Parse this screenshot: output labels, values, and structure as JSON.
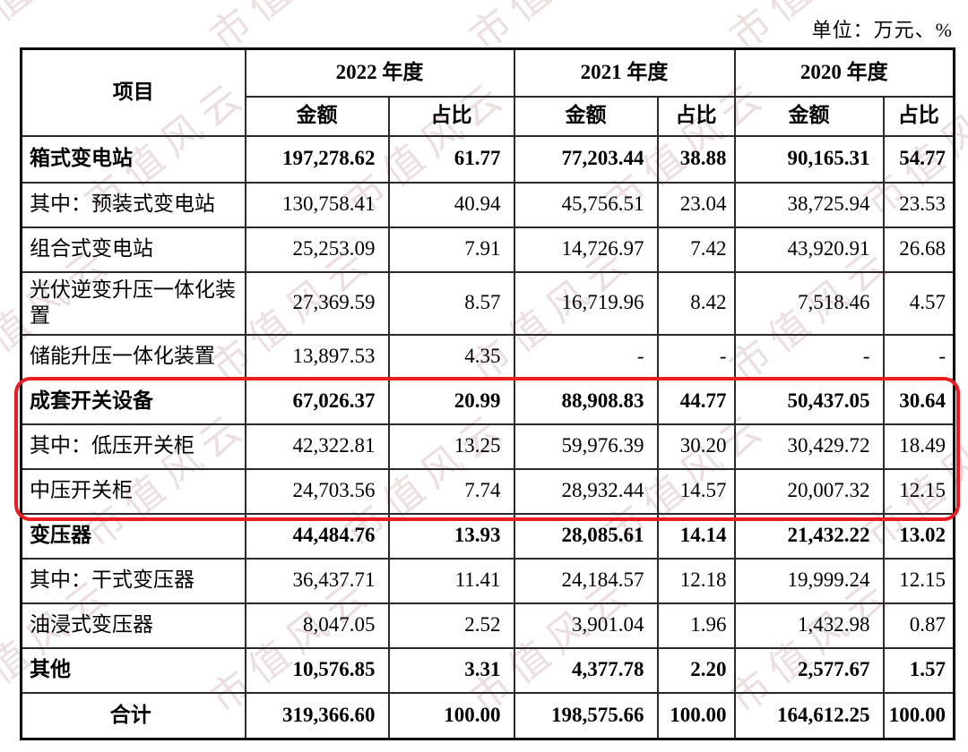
{
  "unit_label": "单位：万元、%",
  "watermark": {
    "text": "市值风云",
    "color": "#ddc6c6"
  },
  "colors": {
    "highlight_border": "#ea1c22",
    "table_border": "#000000"
  },
  "table": {
    "item_header": "项目",
    "year_groups": [
      {
        "label": "2022 年度",
        "amount_label": "金额",
        "ratio_label": "占比"
      },
      {
        "label": "2021 年度",
        "amount_label": "金额",
        "ratio_label": "占比"
      },
      {
        "label": "2020 年度",
        "amount_label": "金额",
        "ratio_label": "占比"
      }
    ],
    "rows": [
      {
        "label": "箱式变电站",
        "bold": true,
        "center": false,
        "values": [
          "197,278.62",
          "61.77",
          "77,203.44",
          "38.88",
          "90,165.31",
          "54.77"
        ]
      },
      {
        "label": "其中：预装式变电站",
        "bold": false,
        "center": false,
        "values": [
          "130,758.41",
          "40.94",
          "45,756.51",
          "23.04",
          "38,725.94",
          "23.53"
        ]
      },
      {
        "label": "组合式变电站",
        "bold": false,
        "center": false,
        "values": [
          "25,253.09",
          "7.91",
          "14,726.97",
          "7.42",
          "43,920.91",
          "26.68"
        ]
      },
      {
        "label": "光伏逆变升压一体化装置",
        "bold": false,
        "center": false,
        "values": [
          "27,369.59",
          "8.57",
          "16,719.96",
          "8.42",
          "7,518.46",
          "4.57"
        ]
      },
      {
        "label": "储能升压一体化装置",
        "bold": false,
        "center": false,
        "values": [
          "13,897.53",
          "4.35",
          "-",
          "-",
          "-",
          "-"
        ]
      },
      {
        "label": "成套开关设备",
        "bold": true,
        "center": false,
        "values": [
          "67,026.37",
          "20.99",
          "88,908.83",
          "44.77",
          "50,437.05",
          "30.64"
        ]
      },
      {
        "label": "其中：低压开关柜",
        "bold": false,
        "center": false,
        "values": [
          "42,322.81",
          "13.25",
          "59,976.39",
          "30.20",
          "30,429.72",
          "18.49"
        ]
      },
      {
        "label": "中压开关柜",
        "bold": false,
        "center": false,
        "values": [
          "24,703.56",
          "7.74",
          "28,932.44",
          "14.57",
          "20,007.32",
          "12.15"
        ]
      },
      {
        "label": "变压器",
        "bold": true,
        "center": false,
        "values": [
          "44,484.76",
          "13.93",
          "28,085.61",
          "14.14",
          "21,432.22",
          "13.02"
        ]
      },
      {
        "label": "其中：干式变压器",
        "bold": false,
        "center": false,
        "values": [
          "36,437.71",
          "11.41",
          "24,184.57",
          "12.18",
          "19,999.24",
          "12.15"
        ]
      },
      {
        "label": "油浸式变压器",
        "bold": false,
        "center": false,
        "values": [
          "8,047.05",
          "2.52",
          "3,901.04",
          "1.96",
          "1,432.98",
          "0.87"
        ]
      },
      {
        "label": "其他",
        "bold": true,
        "center": false,
        "values": [
          "10,576.85",
          "3.31",
          "4,377.78",
          "2.20",
          "2,577.67",
          "1.57"
        ]
      },
      {
        "label": "合计",
        "bold": true,
        "center": true,
        "values": [
          "319,366.60",
          "100.00",
          "198,575.66",
          "100.00",
          "164,612.25",
          "100.00"
        ]
      }
    ],
    "highlighted_row_labels": [
      "成套开关设备",
      "其中：低压开关柜",
      "中压开关柜"
    ]
  }
}
